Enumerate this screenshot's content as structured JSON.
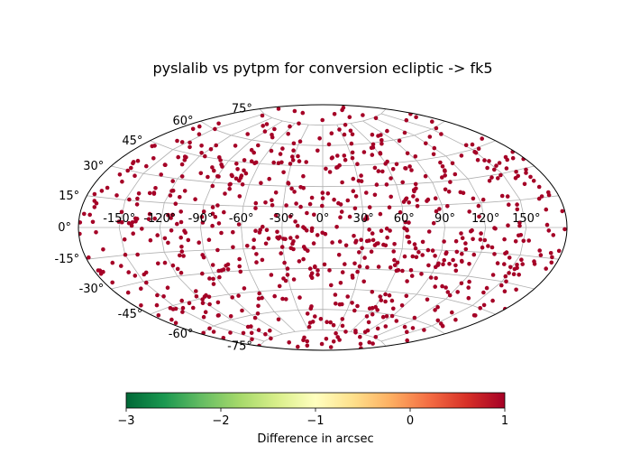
{
  "chart_data": {
    "type": "scatter",
    "projection": "aitoff",
    "title": "pyslalib vs pytpm for conversion ecliptic -> fk5",
    "lon_tick_labels": [
      "-150°",
      "-120°",
      "-90°",
      "-60°",
      "-30°",
      "0°",
      "30°",
      "60°",
      "90°",
      "120°",
      "150°"
    ],
    "lon_ticks": [
      -150,
      -120,
      -90,
      -60,
      -30,
      0,
      30,
      60,
      90,
      120,
      150
    ],
    "lat_tick_labels": [
      "75°",
      "60°",
      "45°",
      "30°",
      "15°",
      "0°",
      "-15°",
      "-30°",
      "-45°",
      "-60°",
      "-75°"
    ],
    "lat_ticks": [
      75,
      60,
      45,
      30,
      15,
      0,
      -15,
      -30,
      -45,
      -60,
      -75
    ],
    "grid": true,
    "points": {
      "distribution": "uniform random over the sphere",
      "count": 800,
      "seed": 12345,
      "value": 1.0,
      "color": "#a50026"
    },
    "colorbar": {
      "label": "Difference in arcsec",
      "range": [
        -3,
        1
      ],
      "ticks": [
        -3,
        -2,
        -1,
        0,
        1
      ],
      "tick_labels": [
        "−3",
        "−2",
        "−1",
        "0",
        "1"
      ],
      "colormap": "RdYlGn_r",
      "colors": [
        "#006837",
        "#1a9850",
        "#66bd63",
        "#a6d96a",
        "#d9ef8b",
        "#ffffbf",
        "#fee08b",
        "#fdae61",
        "#f46d43",
        "#d73027",
        "#a50026"
      ],
      "placement": "bottom"
    }
  }
}
